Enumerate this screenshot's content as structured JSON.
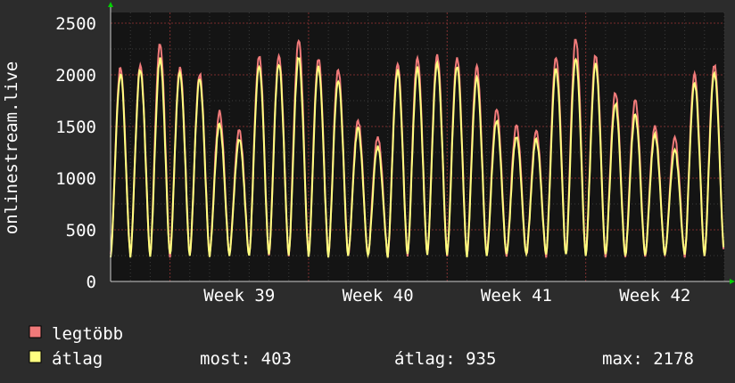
{
  "chart_data": {
    "type": "line",
    "ylabel": "onlinestream.live",
    "xlabel": "",
    "title": "",
    "ylim": [
      0,
      2500
    ],
    "y_ticks": [
      0,
      500,
      1000,
      1500,
      2000,
      2500
    ],
    "x_ticks": [
      "Week 39",
      "Week 40",
      "Week 41",
      "Week 42"
    ],
    "x_days_range": [
      0,
      31
    ],
    "x_tick_days": [
      6.5,
      13.5,
      20.5,
      27.5
    ],
    "grid": true,
    "daily_peaks_max": [
      2070,
      2090,
      2300,
      2070,
      2010,
      1640,
      1460,
      2180,
      2190,
      2340,
      2160,
      2050,
      1560,
      1400,
      2120,
      2170,
      2190,
      2170,
      2070,
      1660,
      1510,
      1470,
      2180,
      2350,
      2190,
      1830,
      1750,
      1500,
      1380,
      2010,
      2100
    ],
    "daily_peaks_avg": [
      2010,
      2050,
      2150,
      2010,
      1960,
      1520,
      1380,
      2090,
      2110,
      2170,
      2080,
      1950,
      1480,
      1300,
      2040,
      2060,
      2110,
      2080,
      1960,
      1560,
      1400,
      1380,
      2060,
      2170,
      2100,
      1720,
      1620,
      1420,
      1270,
      1920,
      2020
    ],
    "daily_trough": 250,
    "series": [
      {
        "name": "legtöbb",
        "color": "#f07a7a",
        "values_ref": "daily_peaks_max"
      },
      {
        "name": "átlag",
        "color": "#ffff80",
        "values_ref": "daily_peaks_avg"
      }
    ]
  },
  "legend": {
    "items": [
      {
        "label": "legtöbb",
        "color": "#f07a7a"
      },
      {
        "label": "átlag",
        "color": "#ffff80"
      }
    ],
    "stats": {
      "now": "most: 403",
      "avg": "átlag: 935",
      "max": "max: 2178"
    }
  },
  "colors": {
    "background": "#2c2c2c",
    "plot_background": "#141414",
    "grid": "#6a2b2b",
    "axis": "#cccccc",
    "arrow": "#00d000"
  }
}
